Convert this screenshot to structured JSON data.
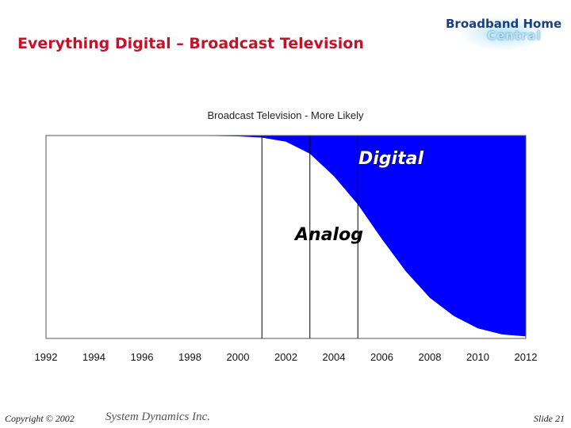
{
  "slide": {
    "title": "Everything Digital – Broadcast Television",
    "logo_line1": "Broadband Home",
    "logo_line2": "Central"
  },
  "footer": {
    "copyright": "Copyright © 2002",
    "company": "System Dynamics Inc.",
    "slide_number": "Slide 21"
  },
  "colors": {
    "title": "#c0142b",
    "digital_fill": "#0000ff",
    "plot_border": "#555555"
  },
  "chart_data": {
    "type": "area",
    "title": "Broadcast Television - More Likely",
    "x_ticks": [
      "1992",
      "1994",
      "1996",
      "1998",
      "2000",
      "2002",
      "2004",
      "2006",
      "2008",
      "2010",
      "2012"
    ],
    "xlim": [
      1992,
      2012
    ],
    "ylim": [
      0,
      100
    ],
    "vertical_markers": [
      2001,
      2003,
      2005
    ],
    "annotations": {
      "upper": "Digital",
      "lower": "Analog"
    },
    "series": [
      {
        "name": "Digital",
        "x": [
          1992,
          1998,
          2000,
          2001,
          2002,
          2003,
          2004,
          2005,
          2006,
          2007,
          2008,
          2009,
          2010,
          2011,
          2012
        ],
        "values": [
          0,
          0,
          0.4,
          1,
          3,
          9,
          20,
          34,
          51,
          67,
          80,
          89,
          95,
          98,
          99
        ]
      }
    ]
  }
}
